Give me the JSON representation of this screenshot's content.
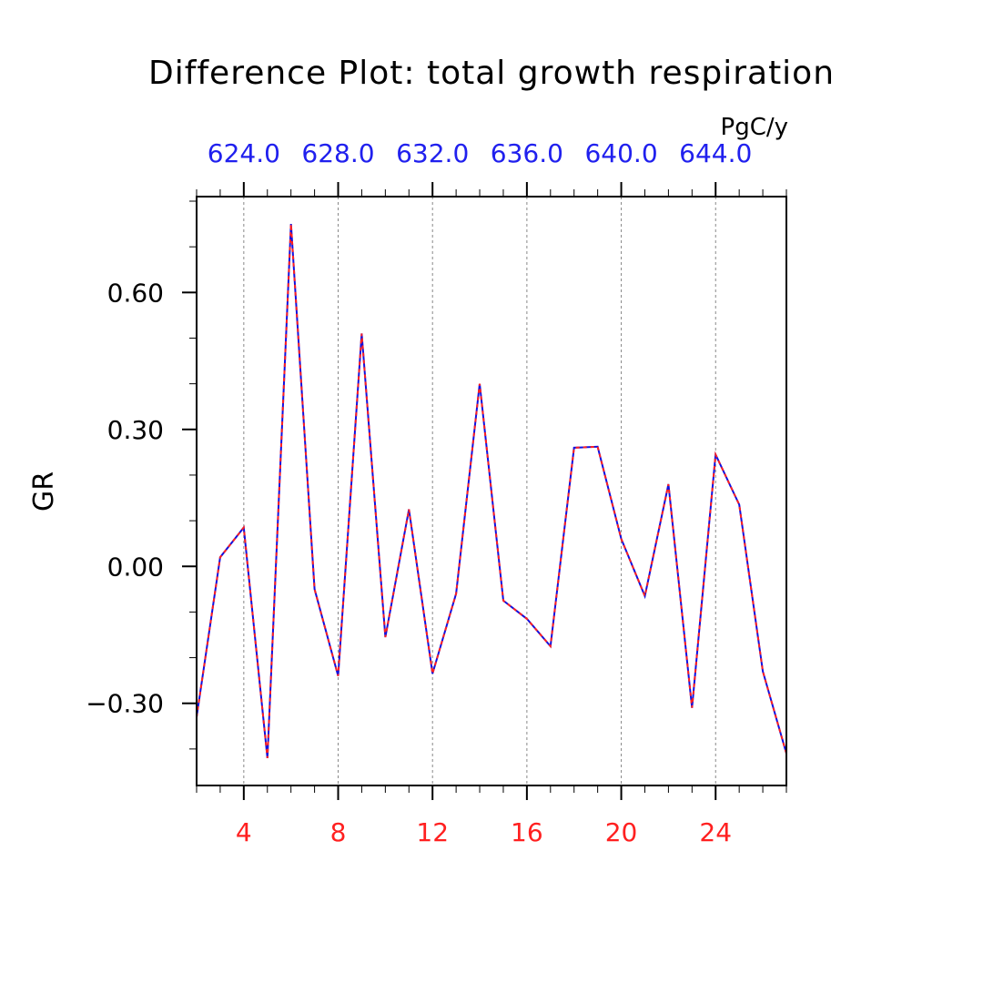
{
  "chart_data": {
    "type": "line",
    "title": "Difference Plot: total growth respiration",
    "units": "PgC/y",
    "ylabel": "GR",
    "xlabel": "",
    "xlim": [
      2,
      27
    ],
    "ylim": [
      -0.48,
      0.81
    ],
    "x_ticks": [
      4,
      8,
      12,
      16,
      20,
      24
    ],
    "x_tick_labels": [
      "4",
      "8",
      "12",
      "16",
      "20",
      "24"
    ],
    "x_minor_step": 1,
    "y_ticks": [
      -0.3,
      0.0,
      0.3,
      0.6
    ],
    "y_tick_labels": [
      "−0.30",
      "0.00",
      "0.30",
      "0.60"
    ],
    "y_minor_step": 0.1,
    "top_ticks": [
      4,
      8,
      12,
      16,
      20,
      24
    ],
    "top_tick_labels": [
      "624.0",
      "628.0",
      "632.0",
      "636.0",
      "640.0",
      "644.0"
    ],
    "grid": "vertical-dashed",
    "colors": {
      "bottom_ticks": "#ff2020",
      "top_ticks": "#2020ee",
      "line_solid": "#1010e0",
      "line_dashed": "#ff2020",
      "grid": "#888888",
      "frame": "#000000"
    },
    "series": [
      {
        "x": [
          2,
          3,
          4,
          5,
          6,
          7,
          8,
          9,
          10,
          11,
          12,
          13,
          14,
          15,
          16,
          17,
          18,
          19,
          20,
          21,
          22,
          23,
          24,
          25,
          26,
          27
        ],
        "values": [
          -0.33,
          0.02,
          0.085,
          -0.42,
          0.75,
          -0.05,
          -0.24,
          0.51,
          -0.155,
          0.125,
          -0.235,
          -0.06,
          0.4,
          -0.075,
          -0.115,
          -0.175,
          0.26,
          0.262,
          0.06,
          -0.065,
          0.18,
          -0.31,
          0.245,
          0.135,
          -0.23,
          -0.41
        ]
      }
    ]
  }
}
